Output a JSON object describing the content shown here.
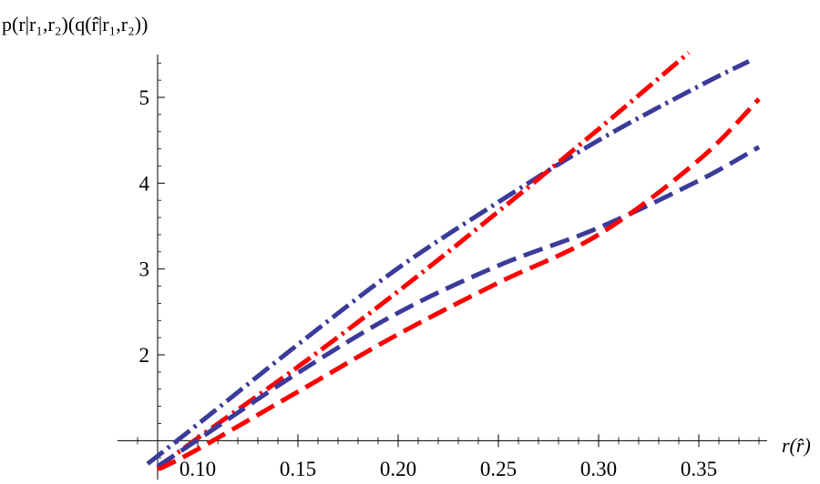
{
  "chart_data": {
    "type": "line",
    "ylabel": "p(r|r₁,r₂)(q(r̂|r₁,r₂))",
    "xlabel": "r(r̂)",
    "xlim": [
      0.06,
      0.38
    ],
    "ylim": [
      0.65,
      5.5
    ],
    "x_axis_crossing_y": 1.0,
    "y_axis_crossing_x": 0.08,
    "xticks": [
      0.1,
      0.15,
      0.2,
      0.25,
      0.3,
      0.35
    ],
    "yticks": [
      2,
      3,
      4,
      5
    ],
    "grid": false,
    "series": [
      {
        "color": "#3b3b9a",
        "dash": "long-dash-dot",
        "x": [
          0.075,
          0.1,
          0.15,
          0.2,
          0.25,
          0.3,
          0.35,
          0.375
        ],
        "y": [
          0.73,
          1.19,
          2.12,
          3.01,
          3.78,
          4.5,
          5.13,
          5.42
        ]
      },
      {
        "color": "#ff0000",
        "dash": "long-dash-dot",
        "x": [
          0.08,
          0.1,
          0.15,
          0.2,
          0.25,
          0.3,
          0.345
        ],
        "y": [
          0.68,
          1.03,
          1.86,
          2.74,
          3.67,
          4.63,
          5.52
        ]
      },
      {
        "color": "#3b3b9a",
        "dash": "long-dash",
        "x": [
          0.08,
          0.1,
          0.15,
          0.2,
          0.25,
          0.3,
          0.35,
          0.38
        ],
        "y": [
          0.7,
          1.01,
          1.79,
          2.49,
          3.04,
          3.48,
          4.03,
          4.42
        ]
      },
      {
        "color": "#ff0000",
        "dash": "long-dash",
        "x": [
          0.08,
          0.1,
          0.15,
          0.2,
          0.25,
          0.3,
          0.35,
          0.38
        ],
        "y": [
          0.66,
          0.9,
          1.57,
          2.24,
          2.84,
          3.4,
          4.27,
          4.98
        ]
      }
    ]
  }
}
